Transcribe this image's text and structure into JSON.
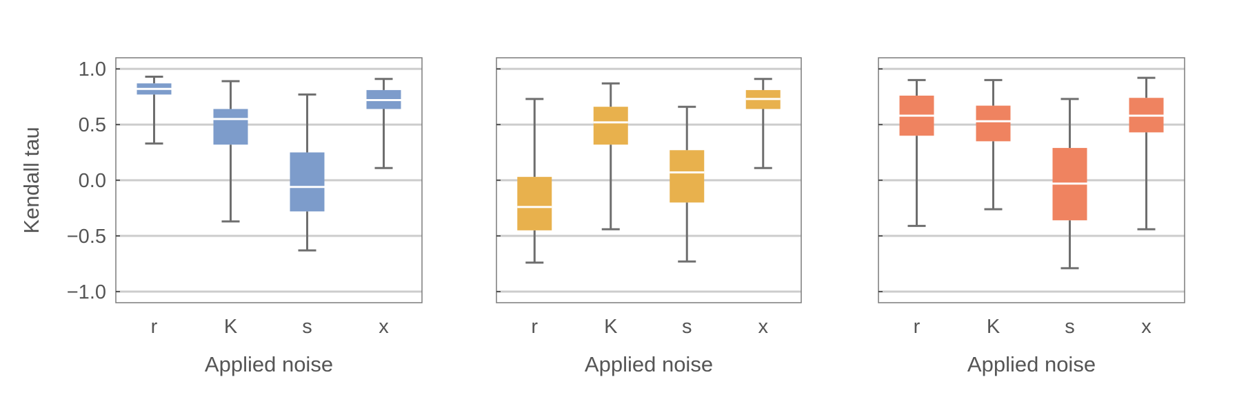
{
  "chart_data": [
    {
      "type": "box",
      "title": "",
      "xlabel": "Applied noise",
      "ylabel": "Kendall tau",
      "ylim": [
        -1.1,
        1.1
      ],
      "yticks": [
        1.0,
        0.5,
        0.0,
        -0.5,
        -1.0
      ],
      "ytick_labels": [
        "1.0",
        "0.5",
        "0.0",
        "−0.5",
        "−1.0"
      ],
      "grid": true,
      "color": "#7d9ccb",
      "categories": [
        "r",
        "K",
        "s",
        "x"
      ],
      "boxes": [
        {
          "category": "r",
          "min": 0.33,
          "q1": 0.77,
          "median": 0.82,
          "q3": 0.87,
          "max": 0.93
        },
        {
          "category": "K",
          "min": -0.37,
          "q1": 0.32,
          "median": 0.55,
          "q3": 0.64,
          "max": 0.89
        },
        {
          "category": "s",
          "min": -0.63,
          "q1": -0.28,
          "median": -0.06,
          "q3": 0.25,
          "max": 0.77
        },
        {
          "category": "x",
          "min": 0.11,
          "q1": 0.64,
          "median": 0.72,
          "q3": 0.81,
          "max": 0.91
        }
      ]
    },
    {
      "type": "box",
      "title": "",
      "xlabel": "Applied noise",
      "ylabel": "",
      "ylim": [
        -1.1,
        1.1
      ],
      "yticks": [
        1.0,
        0.5,
        0.0,
        -0.5,
        -1.0
      ],
      "ytick_labels": [],
      "grid": true,
      "color": "#e8b14d",
      "categories": [
        "r",
        "K",
        "s",
        "x"
      ],
      "boxes": [
        {
          "category": "r",
          "min": -0.74,
          "q1": -0.45,
          "median": -0.24,
          "q3": 0.03,
          "max": 0.73
        },
        {
          "category": "K",
          "min": -0.44,
          "q1": 0.32,
          "median": 0.52,
          "q3": 0.66,
          "max": 0.87
        },
        {
          "category": "s",
          "min": -0.73,
          "q1": -0.2,
          "median": 0.07,
          "q3": 0.27,
          "max": 0.66
        },
        {
          "category": "x",
          "min": 0.11,
          "q1": 0.64,
          "median": 0.73,
          "q3": 0.81,
          "max": 0.91
        }
      ]
    },
    {
      "type": "box",
      "title": "",
      "xlabel": "Applied noise",
      "ylabel": "",
      "ylim": [
        -1.1,
        1.1
      ],
      "yticks": [
        1.0,
        0.5,
        0.0,
        -0.5,
        -1.0
      ],
      "ytick_labels": [],
      "grid": true,
      "color": "#ef8360",
      "categories": [
        "r",
        "K",
        "s",
        "x"
      ],
      "boxes": [
        {
          "category": "r",
          "min": -0.41,
          "q1": 0.4,
          "median": 0.58,
          "q3": 0.76,
          "max": 0.9
        },
        {
          "category": "K",
          "min": -0.26,
          "q1": 0.35,
          "median": 0.53,
          "q3": 0.67,
          "max": 0.9
        },
        {
          "category": "s",
          "min": -0.79,
          "q1": -0.36,
          "median": -0.03,
          "q3": 0.29,
          "max": 0.73
        },
        {
          "category": "x",
          "min": -0.44,
          "q1": 0.43,
          "median": 0.58,
          "q3": 0.74,
          "max": 0.92
        }
      ]
    }
  ]
}
